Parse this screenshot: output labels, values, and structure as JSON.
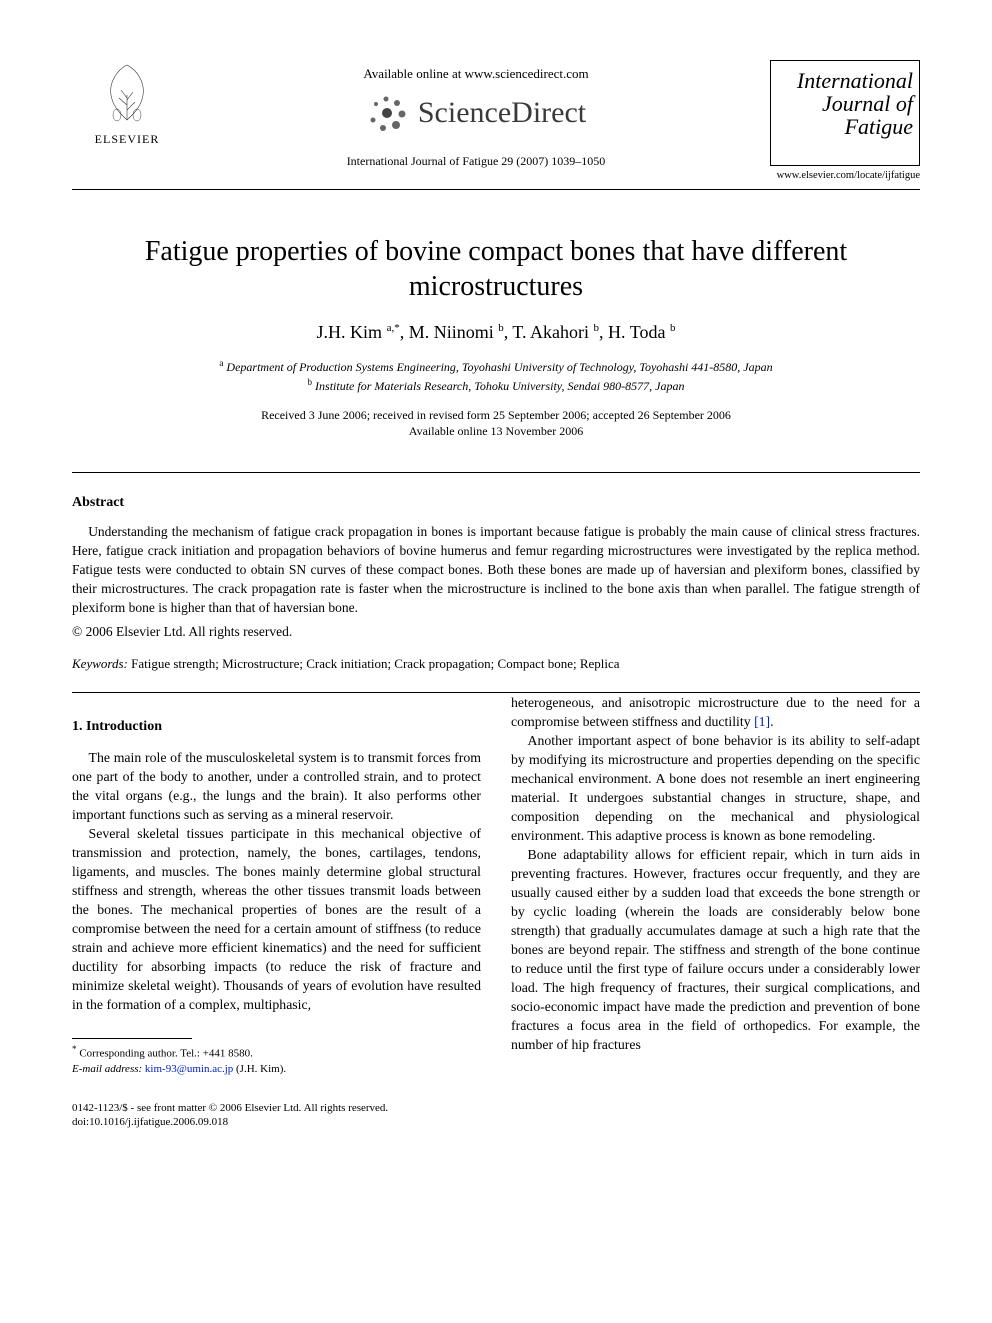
{
  "header": {
    "available_line": "Available online at www.sciencedirect.com",
    "sd_brand": "ScienceDirect",
    "citation": "International Journal of Fatigue 29 (2007) 1039–1050",
    "elsevier_label": "ELSEVIER",
    "journal_title_line1": "International",
    "journal_title_line2": "Journal of",
    "journal_title_line3": "Fatigue",
    "journal_url": "www.elsevier.com/locate/ijfatigue"
  },
  "article": {
    "title": "Fatigue properties of bovine compact bones that have different microstructures",
    "authors_html": "J.H. Kim <sup>a,*</sup>, M. Niinomi <sup>b</sup>, T. Akahori <sup>b</sup>, H. Toda <sup>b</sup>",
    "affiliations": {
      "a": "Department of Production Systems Engineering, Toyohashi University of Technology, Toyohashi 441-8580, Japan",
      "b": "Institute for Materials Research, Tohoku University, Sendai 980-8577, Japan"
    },
    "dates_line1": "Received 3 June 2006; received in revised form 25 September 2006; accepted 26 September 2006",
    "dates_line2": "Available online 13 November 2006"
  },
  "abstract": {
    "heading": "Abstract",
    "body": "Understanding the mechanism of fatigue crack propagation in bones is important because fatigue is probably the main cause of clinical stress fractures. Here, fatigue crack initiation and propagation behaviors of bovine humerus and femur regarding microstructures were investigated by the replica method. Fatigue tests were conducted to obtain SN curves of these compact bones. Both these bones are made up of haversian and plexiform bones, classified by their microstructures. The crack propagation rate is faster when the microstructure is inclined to the bone axis than when parallel. The fatigue strength of plexiform bone is higher than that of haversian bone.",
    "copyright": "© 2006 Elsevier Ltd. All rights reserved."
  },
  "keywords": {
    "label": "Keywords:",
    "text": " Fatigue strength; Microstructure; Crack initiation; Crack propagation; Compact bone; Replica"
  },
  "section1": {
    "heading": "1. Introduction",
    "col1": {
      "p1": "The main role of the musculoskeletal system is to transmit forces from one part of the body to another, under a controlled strain, and to protect the vital organs (e.g., the lungs and the brain). It also performs other important functions such as serving as a mineral reservoir.",
      "p2": "Several skeletal tissues participate in this mechanical objective of transmission and protection, namely, the bones, cartilages, tendons, ligaments, and muscles. The bones mainly determine global structural stiffness and strength, whereas the other tissues transmit loads between the bones. The mechanical properties of bones are the result of a compromise between the need for a certain amount of stiffness (to reduce strain and achieve more efficient kinematics) and the need for sufficient ductility for absorbing impacts (to reduce the risk of fracture and minimize skeletal weight). Thousands of years of evolution have resulted in the formation of a complex, multiphasic,"
    },
    "col2": {
      "p1_pre": "heterogeneous, and anisotropic microstructure due to the need for a compromise between stiffness and ductility ",
      "p1_ref": "[1]",
      "p1_post": ".",
      "p2": "Another important aspect of bone behavior is its ability to self-adapt by modifying its microstructure and properties depending on the specific mechanical environment. A bone does not resemble an inert engineering material. It undergoes substantial changes in structure, shape, and composition depending on the mechanical and physiological environment. This adaptive process is known as bone remodeling.",
      "p3": "Bone adaptability allows for efficient repair, which in turn aids in preventing fractures. However, fractures occur frequently, and they are usually caused either by a sudden load that exceeds the bone strength or by cyclic loading (wherein the loads are considerably below bone strength) that gradually accumulates damage at such a high rate that the bones are beyond repair. The stiffness and strength of the bone continue to reduce until the first type of failure occurs under a considerably lower load. The high frequency of fractures, their surgical complications, and socio-economic impact have made the prediction and prevention of bone fractures a focus area in the field of orthopedics. For example, the number of hip fractures"
    }
  },
  "footnote": {
    "corr_label": "Corresponding author. Tel.: +441 8580.",
    "email_label": "E-mail address:",
    "email": "kim-93@umin.ac.jp",
    "email_post": " (J.H. Kim)."
  },
  "bottom": {
    "line1": "0142-1123/$ - see front matter © 2006 Elsevier Ltd. All rights reserved.",
    "line2": "doi:10.1016/j.ijfatigue.2006.09.018"
  },
  "colors": {
    "link": "#0020c2",
    "text": "#000000",
    "background": "#ffffff"
  }
}
